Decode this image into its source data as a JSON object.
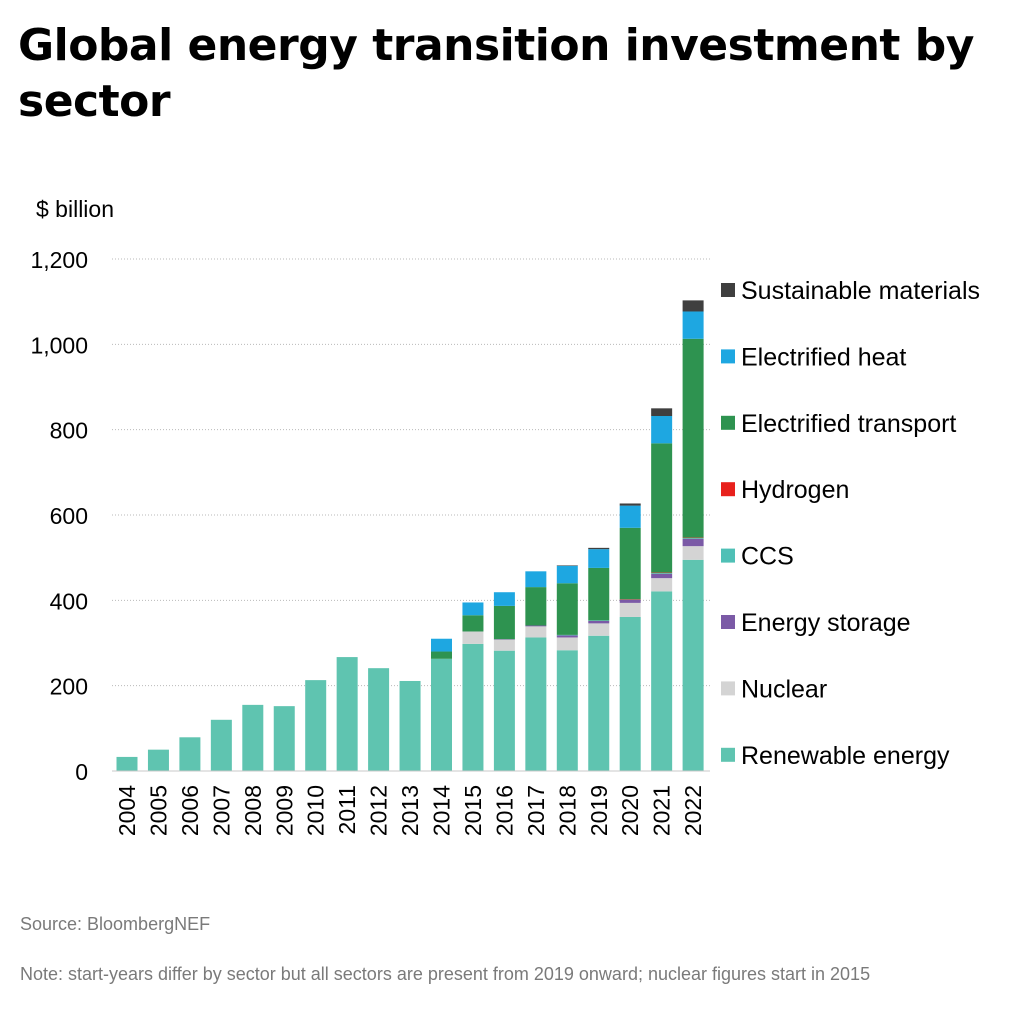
{
  "title": "Global energy transition investment by sector",
  "footer": {
    "source": "Source: BloombergNEF",
    "note": "Note: start-years differ by sector but all sectors are present from 2019 onward; nuclear figures start in 2015"
  },
  "chart_data": {
    "type": "bar",
    "stacked": true,
    "ylabel": "$ billion",
    "ylim": [
      0,
      1200
    ],
    "yticks": [
      0,
      200,
      400,
      600,
      800,
      1000,
      1200
    ],
    "ytick_labels": [
      "0",
      "200",
      "400",
      "600",
      "800",
      "1,000",
      "1,200"
    ],
    "grid": true,
    "legend_position": "right",
    "categories": [
      "2004",
      "2005",
      "2006",
      "2007",
      "2008",
      "2009",
      "2010",
      "2011",
      "2012",
      "2013",
      "2014",
      "2015",
      "2016",
      "2017",
      "2018",
      "2019",
      "2020",
      "2021",
      "2022"
    ],
    "series": [
      {
        "name": "Renewable energy",
        "color": "#5fc4b0",
        "values": [
          33,
          50,
          79,
          120,
          155,
          152,
          213,
          267,
          241,
          211,
          263,
          298,
          282,
          313,
          283,
          317,
          361,
          421,
          495
        ]
      },
      {
        "name": "Nuclear",
        "color": "#d4d4d4",
        "values": [
          0,
          0,
          0,
          0,
          0,
          0,
          0,
          0,
          0,
          0,
          0,
          29,
          26,
          26,
          30,
          29,
          33,
          31,
          32
        ]
      },
      {
        "name": "Energy storage",
        "color": "#7b5aa6",
        "values": [
          0,
          0,
          0,
          0,
          0,
          0,
          0,
          0,
          0,
          0,
          0,
          0,
          1,
          2,
          5,
          6,
          7,
          10,
          17
        ]
      },
      {
        "name": "CCS",
        "color": "#4fc0b6",
        "values": [
          0,
          0,
          0,
          0,
          0,
          0,
          0,
          0,
          0,
          0,
          0,
          0,
          0,
          0,
          1,
          1,
          1,
          2,
          2
        ]
      },
      {
        "name": "Hydrogen",
        "color": "#e8211c",
        "values": [
          0,
          0,
          0,
          0,
          0,
          0,
          0,
          0,
          0,
          0,
          0,
          0,
          0,
          0,
          0,
          0,
          1,
          1,
          1
        ]
      },
      {
        "name": "Electrified transport",
        "color": "#2e9350",
        "values": [
          0,
          0,
          0,
          0,
          0,
          0,
          0,
          0,
          0,
          0,
          17,
          38,
          78,
          90,
          121,
          123,
          167,
          303,
          466
        ]
      },
      {
        "name": "Electrified heat",
        "color": "#1ea7e1",
        "values": [
          0,
          0,
          0,
          0,
          0,
          0,
          0,
          0,
          0,
          0,
          30,
          30,
          32,
          37,
          41,
          44,
          52,
          64,
          64
        ]
      },
      {
        "name": "Sustainable materials",
        "color": "#3f3f3f",
        "values": [
          0,
          0,
          0,
          0,
          0,
          0,
          0,
          0,
          0,
          0,
          0,
          0,
          0,
          0,
          1,
          3,
          5,
          18,
          26
        ]
      }
    ],
    "legend_order": [
      "Sustainable materials",
      "Electrified heat",
      "Electrified transport",
      "Hydrogen",
      "CCS",
      "Energy storage",
      "Nuclear",
      "Renewable energy"
    ]
  }
}
